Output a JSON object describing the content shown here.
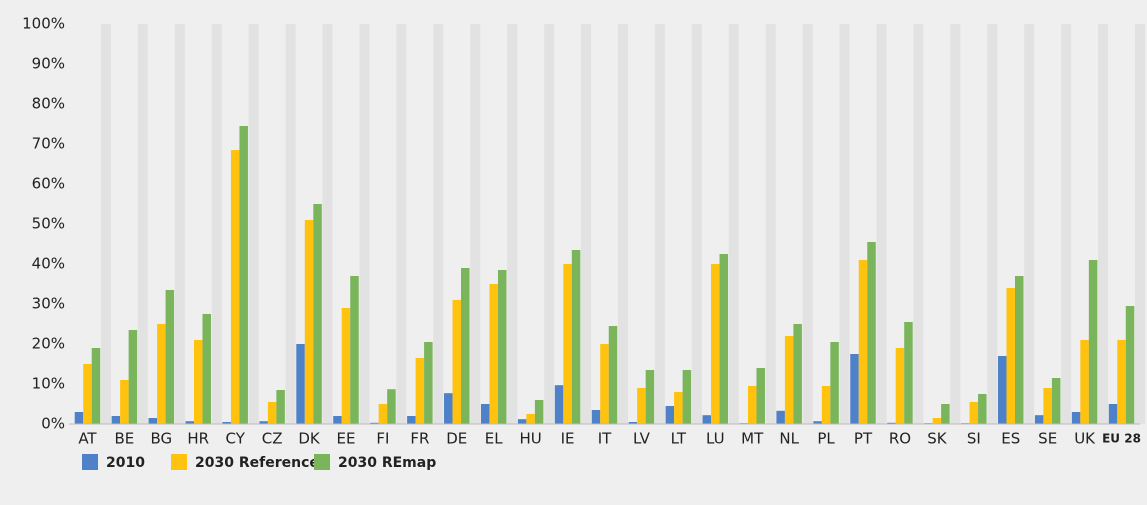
{
  "chart_data": {
    "type": "bar",
    "categories": [
      "AT",
      "BE",
      "BG",
      "HR",
      "CY",
      "CZ",
      "DK",
      "EE",
      "FI",
      "FR",
      "DE",
      "EL",
      "HU",
      "IE",
      "IT",
      "LV",
      "LT",
      "LU",
      "MT",
      "NL",
      "PL",
      "PT",
      "RO",
      "SK",
      "SI",
      "ES",
      "SE",
      "UK",
      "EU 28"
    ],
    "series": [
      {
        "name": "2010",
        "color": "#4f81c9",
        "values": [
          3,
          2,
          1.5,
          0.7,
          0.5,
          0.7,
          20,
          2,
          0.3,
          2,
          7.7,
          5,
          1.2,
          9.7,
          3.5,
          0.5,
          4.5,
          2.2,
          0.2,
          3.3,
          0.7,
          17.5,
          0.3,
          0.2,
          0.2,
          17,
          2.2,
          3,
          5
        ]
      },
      {
        "name": "2030 Reference",
        "color": "#ffc20e",
        "values": [
          15,
          11,
          25,
          21,
          68.5,
          5.5,
          51,
          29,
          5,
          16.5,
          31,
          35,
          2.5,
          40,
          20,
          9,
          8,
          40,
          9.5,
          22,
          9.5,
          41,
          19,
          1.5,
          5.5,
          34,
          9,
          21,
          21
        ]
      },
      {
        "name": "2030 REmap",
        "color": "#7ab55c",
        "values": [
          19,
          23.5,
          33.5,
          27.5,
          74.5,
          8.5,
          55,
          37,
          8.7,
          20.5,
          39,
          38.5,
          6,
          43.5,
          24.5,
          13.5,
          13.5,
          42.5,
          14,
          25,
          20.5,
          45.5,
          25.5,
          5,
          7.5,
          37,
          11.5,
          41,
          29.5
        ]
      }
    ],
    "ylim": [
      0,
      100
    ],
    "yticks": [
      {
        "value": 0,
        "label": "0%"
      },
      {
        "value": 10,
        "label": "10%"
      },
      {
        "value": 20,
        "label": "20%"
      },
      {
        "value": 30,
        "label": "30%"
      },
      {
        "value": 40,
        "label": "40%"
      },
      {
        "value": 50,
        "label": "50%"
      },
      {
        "value": 60,
        "label": "60%"
      },
      {
        "value": 70,
        "label": "70%"
      },
      {
        "value": 80,
        "label": "80%"
      },
      {
        "value": 90,
        "label": "90%"
      },
      {
        "value": 100,
        "label": "100%"
      }
    ]
  }
}
